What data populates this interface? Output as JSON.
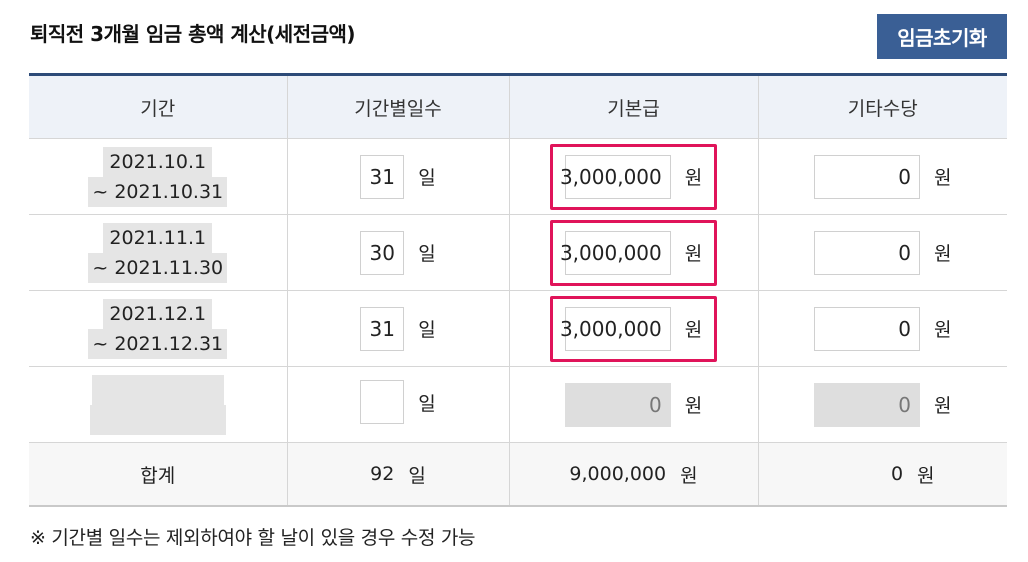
{
  "title": "퇴직전 3개월 임금 총액 계산(세전금액)",
  "reset_button": "임금초기화",
  "headers": [
    "기간",
    "기간별일수",
    "기본급",
    "기타수당"
  ],
  "rows": [
    {
      "start": "2021.10.1",
      "end": "~ 2021.10.31",
      "days": "31",
      "base": "3,000,000",
      "other": "0"
    },
    {
      "start": "2021.11.1",
      "end": "~ 2021.11.30",
      "days": "30",
      "base": "3,000,000",
      "other": "0"
    },
    {
      "start": "2021.12.1",
      "end": "~ 2021.12.31",
      "days": "31",
      "base": "3,000,000",
      "other": "0"
    },
    {
      "start": "",
      "end": "",
      "days": "",
      "base": "0",
      "other": "0"
    }
  ],
  "units": {
    "day": "일",
    "won": "원"
  },
  "total": {
    "label": "합계",
    "days": "92",
    "base": "9,000,000",
    "other": "0"
  },
  "note": "※ 기간별 일수는 제외하여야 할 날이 있을 경우 수정 가능",
  "colors": {
    "header_bg": "#eef2f8",
    "button_bg": "#3a5f95",
    "highlight": "#e0145a",
    "top_border": "#2d4b78"
  }
}
